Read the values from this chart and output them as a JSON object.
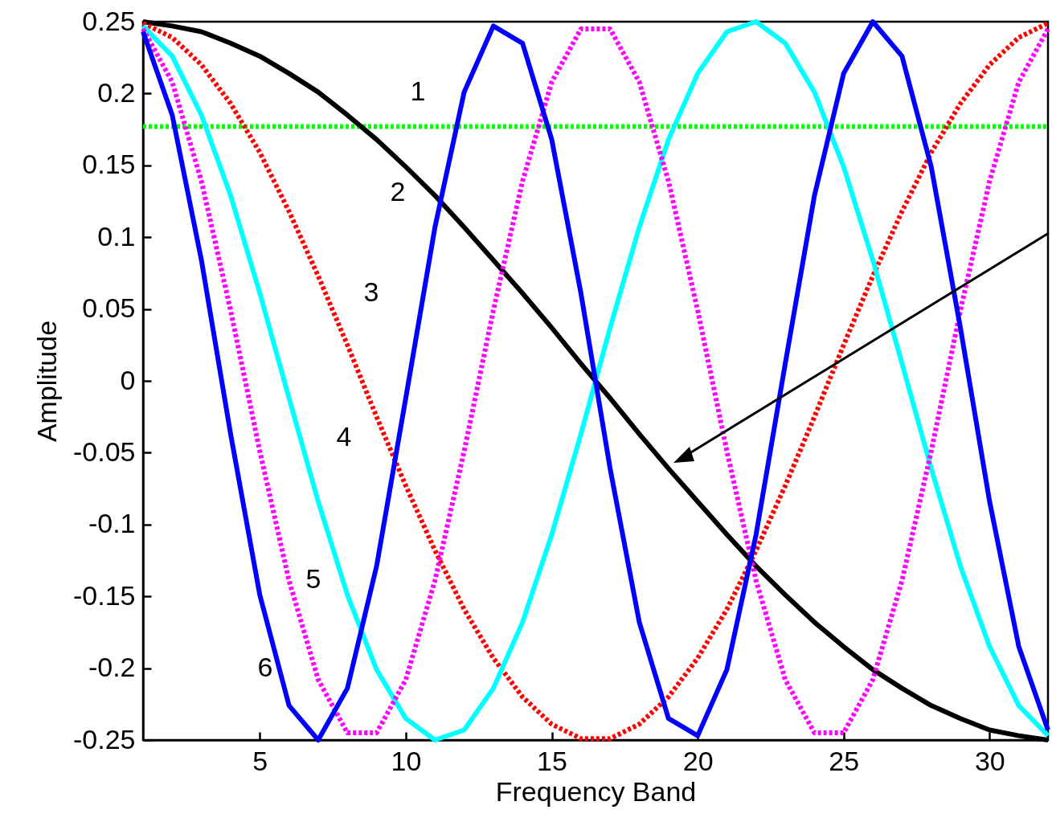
{
  "chart_data": {
    "type": "line",
    "xlabel": "Frequency Band",
    "ylabel": "Amplitude",
    "x": [
      1,
      2,
      3,
      4,
      5,
      6,
      7,
      8,
      9,
      10,
      11,
      12,
      13,
      14,
      15,
      16,
      17,
      18,
      19,
      20,
      21,
      22,
      23,
      24,
      25,
      26,
      27,
      28,
      29,
      30,
      31,
      32
    ],
    "xlim": [
      1,
      32
    ],
    "xticks": [
      5,
      10,
      15,
      20,
      25,
      30
    ],
    "ylim": [
      -0.25,
      0.25
    ],
    "yticks": [
      -0.25,
      -0.2,
      -0.15,
      -0.1,
      -0.05,
      0,
      0.05,
      0.1,
      0.15,
      0.2,
      0.25
    ],
    "grid": false,
    "marker": "none",
    "series": [
      {
        "name": "1",
        "color": "#00ff00",
        "line_style": "dotted",
        "values": [
          0.177,
          0.177,
          0.177,
          0.177,
          0.177,
          0.177,
          0.177,
          0.177,
          0.177,
          0.177,
          0.177,
          0.177,
          0.177,
          0.177,
          0.177,
          0.177,
          0.177,
          0.177,
          0.177,
          0.177,
          0.177,
          0.177,
          0.177,
          0.177,
          0.177,
          0.177,
          0.177,
          0.177,
          0.177,
          0.177,
          0.177,
          0.177
        ]
      },
      {
        "name": "2",
        "color": "#000000",
        "line_style": "solid",
        "values": [
          0.25,
          0.247,
          0.243,
          0.235,
          0.226,
          0.214,
          0.201,
          0.185,
          0.168,
          0.149,
          0.129,
          0.107,
          0.084,
          0.061,
          0.037,
          0.012,
          -0.012,
          -0.037,
          -0.061,
          -0.084,
          -0.107,
          -0.129,
          -0.149,
          -0.168,
          -0.185,
          -0.201,
          -0.214,
          -0.226,
          -0.235,
          -0.243,
          -0.247,
          -0.25
        ]
      },
      {
        "name": "3",
        "color": "#ff0000",
        "line_style": "dotted",
        "values": [
          0.249,
          0.239,
          0.22,
          0.193,
          0.159,
          0.118,
          0.073,
          0.025,
          -0.025,
          -0.073,
          -0.118,
          -0.159,
          -0.193,
          -0.22,
          -0.239,
          -0.249,
          -0.249,
          -0.239,
          -0.22,
          -0.193,
          -0.159,
          -0.118,
          -0.073,
          -0.025,
          0.025,
          0.073,
          0.118,
          0.159,
          0.193,
          0.22,
          0.239,
          0.249
        ]
      },
      {
        "name": "4",
        "color": "#00ffff",
        "line_style": "solid",
        "values": [
          0.247,
          0.226,
          0.185,
          0.129,
          0.061,
          -0.012,
          -0.084,
          -0.149,
          -0.201,
          -0.235,
          -0.25,
          -0.243,
          -0.214,
          -0.168,
          -0.107,
          -0.037,
          0.037,
          0.107,
          0.168,
          0.214,
          0.243,
          0.25,
          0.235,
          0.201,
          0.149,
          0.084,
          0.012,
          -0.061,
          -0.129,
          -0.185,
          -0.226,
          -0.247
        ]
      },
      {
        "name": "5",
        "color": "#ff00ff",
        "line_style": "dotted",
        "values": [
          0.245,
          0.208,
          0.139,
          0.049,
          -0.049,
          -0.139,
          -0.208,
          -0.245,
          -0.245,
          -0.208,
          -0.139,
          -0.049,
          0.049,
          0.139,
          0.208,
          0.245,
          0.245,
          0.208,
          0.139,
          0.049,
          -0.049,
          -0.139,
          -0.208,
          -0.245,
          -0.245,
          -0.208,
          -0.139,
          -0.049,
          0.049,
          0.139,
          0.208,
          0.245
        ]
      },
      {
        "name": "6",
        "color": "#0000ff",
        "line_style": "solid",
        "values": [
          0.243,
          0.185,
          0.084,
          -0.037,
          -0.149,
          -0.226,
          -0.25,
          -0.214,
          -0.129,
          -0.012,
          0.107,
          0.201,
          0.247,
          0.235,
          0.168,
          0.061,
          -0.061,
          -0.168,
          -0.235,
          -0.247,
          -0.201,
          -0.107,
          0.012,
          0.129,
          0.214,
          0.25,
          0.226,
          0.149,
          0.037,
          -0.084,
          -0.185,
          -0.243
        ]
      }
    ]
  }
}
